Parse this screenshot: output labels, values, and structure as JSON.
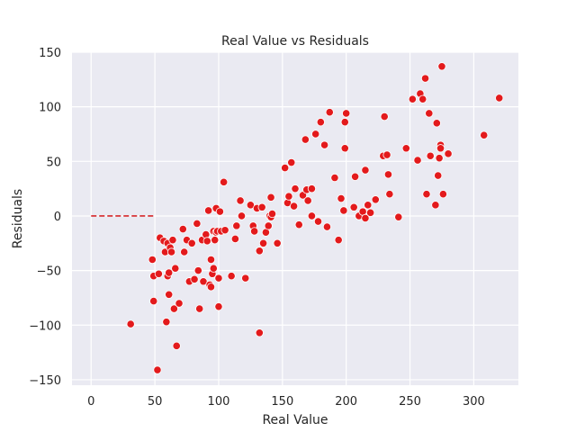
{
  "chart_data": {
    "type": "scatter",
    "title": "Real Value vs Residuals",
    "xlabel": "Real Value",
    "ylabel": "Residuals",
    "xlim": [
      -15,
      335
    ],
    "ylim": [
      -155,
      150
    ],
    "xticks": [
      0,
      50,
      100,
      150,
      200,
      250,
      300
    ],
    "yticks": [
      -150,
      -100,
      -50,
      0,
      50,
      100,
      150
    ],
    "xtick_labels": [
      "0",
      "50",
      "100",
      "150",
      "200",
      "250",
      "300"
    ],
    "ytick_labels": [
      "−150",
      "−100",
      "−50",
      "0",
      "50",
      "100",
      "150"
    ],
    "grid": true,
    "background": "#eaeaf2",
    "point_color": "#e31a1c",
    "point_edge_color": "#ffffff",
    "reference_line": {
      "x": [
        0,
        50
      ],
      "y": 0,
      "style": "dashed",
      "color": "#d62728"
    },
    "series": [
      {
        "points": [
          [
            31,
            -99
          ],
          [
            48,
            -40
          ],
          [
            49,
            -55
          ],
          [
            49,
            -78
          ],
          [
            52,
            -141
          ],
          [
            53,
            -53
          ],
          [
            54,
            -20
          ],
          [
            57,
            -23
          ],
          [
            58,
            -33
          ],
          [
            59,
            -97
          ],
          [
            60,
            -25
          ],
          [
            60,
            -55
          ],
          [
            61,
            -52
          ],
          [
            61,
            -72
          ],
          [
            62,
            -29
          ],
          [
            63,
            -33
          ],
          [
            64,
            -22
          ],
          [
            65,
            -85
          ],
          [
            66,
            -48
          ],
          [
            67,
            -119
          ],
          [
            69,
            -80
          ],
          [
            72,
            -12
          ],
          [
            73,
            -33
          ],
          [
            75,
            -22
          ],
          [
            77,
            -60
          ],
          [
            79,
            -25
          ],
          [
            81,
            -58
          ],
          [
            83,
            -7
          ],
          [
            84,
            -50
          ],
          [
            85,
            -85
          ],
          [
            87,
            -22
          ],
          [
            88,
            -60
          ],
          [
            90,
            -17
          ],
          [
            91,
            -23
          ],
          [
            92,
            5
          ],
          [
            93,
            -63
          ],
          [
            94,
            -65
          ],
          [
            94,
            -40
          ],
          [
            95,
            -53
          ],
          [
            96,
            -14
          ],
          [
            96,
            -48
          ],
          [
            97,
            -22
          ],
          [
            98,
            7
          ],
          [
            98,
            -15
          ],
          [
            99,
            -14
          ],
          [
            100,
            -83
          ],
          [
            100,
            -57
          ],
          [
            101,
            4
          ],
          [
            102,
            -14
          ],
          [
            104,
            31
          ],
          [
            105,
            -13
          ],
          [
            110,
            -55
          ],
          [
            113,
            -21
          ],
          [
            114,
            -9
          ],
          [
            117,
            14
          ],
          [
            118,
            0
          ],
          [
            121,
            -57
          ],
          [
            125,
            10
          ],
          [
            127,
            -9
          ],
          [
            128,
            -14
          ],
          [
            130,
            7
          ],
          [
            132,
            -32
          ],
          [
            132,
            -107
          ],
          [
            134,
            8
          ],
          [
            135,
            -25
          ],
          [
            137,
            -15
          ],
          [
            139,
            -9
          ],
          [
            140,
            0
          ],
          [
            141,
            -1
          ],
          [
            141,
            17
          ],
          [
            142,
            2
          ],
          [
            146,
            -25
          ],
          [
            152,
            44
          ],
          [
            154,
            12
          ],
          [
            155,
            18
          ],
          [
            157,
            49
          ],
          [
            159,
            9
          ],
          [
            160,
            25
          ],
          [
            163,
            -8
          ],
          [
            166,
            19
          ],
          [
            168,
            70
          ],
          [
            169,
            24
          ],
          [
            170,
            14
          ],
          [
            173,
            25
          ],
          [
            173,
            0
          ],
          [
            176,
            75
          ],
          [
            178,
            -5
          ],
          [
            180,
            86
          ],
          [
            183,
            65
          ],
          [
            185,
            -10
          ],
          [
            187,
            95
          ],
          [
            191,
            35
          ],
          [
            194,
            -22
          ],
          [
            196,
            16
          ],
          [
            198,
            5
          ],
          [
            199,
            62
          ],
          [
            199,
            86
          ],
          [
            200,
            94
          ],
          [
            206,
            8
          ],
          [
            207,
            36
          ],
          [
            210,
            0
          ],
          [
            213,
            4
          ],
          [
            215,
            42
          ],
          [
            215,
            -2
          ],
          [
            217,
            10
          ],
          [
            219,
            3
          ],
          [
            223,
            15
          ],
          [
            229,
            55
          ],
          [
            230,
            91
          ],
          [
            232,
            56
          ],
          [
            233,
            38
          ],
          [
            234,
            20
          ],
          [
            241,
            -1
          ],
          [
            247,
            62
          ],
          [
            252,
            107
          ],
          [
            256,
            51
          ],
          [
            258,
            112
          ],
          [
            260,
            107
          ],
          [
            262,
            126
          ],
          [
            263,
            20
          ],
          [
            265,
            94
          ],
          [
            266,
            55
          ],
          [
            270,
            10
          ],
          [
            271,
            85
          ],
          [
            272,
            37
          ],
          [
            273,
            53
          ],
          [
            274,
            65
          ],
          [
            274,
            62
          ],
          [
            275,
            137
          ],
          [
            276,
            20
          ],
          [
            280,
            57
          ],
          [
            308,
            74
          ],
          [
            320,
            108
          ]
        ]
      }
    ]
  }
}
